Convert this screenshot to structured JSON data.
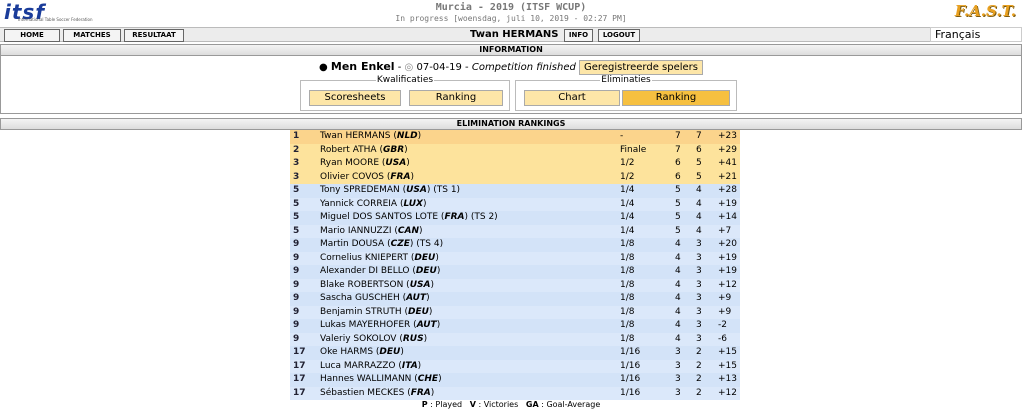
{
  "header": {
    "logo_left": "itsf",
    "logo_left_sub": "International Table Soccer Federation",
    "logo_right": "F.A.S.T.",
    "title": "Murcia - 2019 (ITSF WCUP)",
    "status": "In progress [woensdag, juli 10, 2019 - 02:27 PM]"
  },
  "nav": {
    "buttons": [
      "HOME",
      "MATCHES",
      "RESULTAAT"
    ],
    "user": "Twan HERMANS",
    "user_buttons": [
      "INFO",
      "LOGOUT"
    ],
    "language": "Français"
  },
  "information": {
    "heading": "INFORMATION",
    "event": "Men Enkel",
    "sep1": "-",
    "date": "07-04-19",
    "sep2": "-",
    "event_status": "Competition finished",
    "players_button": "Geregistreerde spelers",
    "qualifications": {
      "legend": "Kwalificaties",
      "buttons": [
        "Scoresheets",
        "Ranking"
      ]
    },
    "eliminations": {
      "legend": "Eliminaties",
      "buttons": [
        "Chart",
        "Ranking"
      ]
    }
  },
  "rankings": {
    "heading": "ELIMINATION RANKINGS",
    "rows": [
      {
        "rank": "1",
        "name": "Twan HERMANS",
        "country": "NLD",
        "seed": "",
        "round": "-",
        "p": "7",
        "v": "7",
        "ga": "+23"
      },
      {
        "rank": "2",
        "name": "Robert ATHA",
        "country": "GBR",
        "seed": "",
        "round": "Finale",
        "p": "7",
        "v": "6",
        "ga": "+29"
      },
      {
        "rank": "3",
        "name": "Ryan MOORE",
        "country": "USA",
        "seed": "",
        "round": "1/2",
        "p": "6",
        "v": "5",
        "ga": "+41"
      },
      {
        "rank": "3",
        "name": "Olivier COVOS",
        "country": "FRA",
        "seed": "",
        "round": "1/2",
        "p": "6",
        "v": "5",
        "ga": "+21"
      },
      {
        "rank": "5",
        "name": "Tony SPREDEMAN",
        "country": "USA",
        "seed": "(TS 1)",
        "round": "1/4",
        "p": "5",
        "v": "4",
        "ga": "+28"
      },
      {
        "rank": "5",
        "name": "Yannick CORREIA",
        "country": "LUX",
        "seed": "",
        "round": "1/4",
        "p": "5",
        "v": "4",
        "ga": "+19"
      },
      {
        "rank": "5",
        "name": "Miguel DOS SANTOS LOTE",
        "country": "FRA",
        "seed": "(TS 2)",
        "round": "1/4",
        "p": "5",
        "v": "4",
        "ga": "+14"
      },
      {
        "rank": "5",
        "name": "Mario IANNUZZI",
        "country": "CAN",
        "seed": "",
        "round": "1/4",
        "p": "5",
        "v": "4",
        "ga": "+7"
      },
      {
        "rank": "9",
        "name": "Martin DOUSA",
        "country": "CZE",
        "seed": "(TS 4)",
        "round": "1/8",
        "p": "4",
        "v": "3",
        "ga": "+20"
      },
      {
        "rank": "9",
        "name": "Cornelius KNIEPERT",
        "country": "DEU",
        "seed": "",
        "round": "1/8",
        "p": "4",
        "v": "3",
        "ga": "+19"
      },
      {
        "rank": "9",
        "name": "Alexander DI BELLO",
        "country": "DEU",
        "seed": "",
        "round": "1/8",
        "p": "4",
        "v": "3",
        "ga": "+19"
      },
      {
        "rank": "9",
        "name": "Blake ROBERTSON",
        "country": "USA",
        "seed": "",
        "round": "1/8",
        "p": "4",
        "v": "3",
        "ga": "+12"
      },
      {
        "rank": "9",
        "name": "Sascha GUSCHEH",
        "country": "AUT",
        "seed": "",
        "round": "1/8",
        "p": "4",
        "v": "3",
        "ga": "+9"
      },
      {
        "rank": "9",
        "name": "Benjamin STRUTH",
        "country": "DEU",
        "seed": "",
        "round": "1/8",
        "p": "4",
        "v": "3",
        "ga": "+9"
      },
      {
        "rank": "9",
        "name": "Lukas MAYERHOFER",
        "country": "AUT",
        "seed": "",
        "round": "1/8",
        "p": "4",
        "v": "3",
        "ga": "-2"
      },
      {
        "rank": "9",
        "name": "Valeriy SOKOLOV",
        "country": "RUS",
        "seed": "",
        "round": "1/8",
        "p": "4",
        "v": "3",
        "ga": "-6"
      },
      {
        "rank": "17",
        "name": "Oke HARMS",
        "country": "DEU",
        "seed": "",
        "round": "1/16",
        "p": "3",
        "v": "2",
        "ga": "+15"
      },
      {
        "rank": "17",
        "name": "Luca MARRAZZO",
        "country": "ITA",
        "seed": "",
        "round": "1/16",
        "p": "3",
        "v": "2",
        "ga": "+15"
      },
      {
        "rank": "17",
        "name": "Hannes WALLIMANN",
        "country": "CHE",
        "seed": "",
        "round": "1/16",
        "p": "3",
        "v": "2",
        "ga": "+13"
      },
      {
        "rank": "17",
        "name": "Sébastien MECKES",
        "country": "FRA",
        "seed": "",
        "round": "1/16",
        "p": "3",
        "v": "2",
        "ga": "+12"
      }
    ]
  },
  "legend": {
    "p": "P",
    "p_text": ": Played",
    "v": "V",
    "v_text": ": Victories",
    "ga": "GA",
    "ga_text": ": Goal-Average"
  }
}
